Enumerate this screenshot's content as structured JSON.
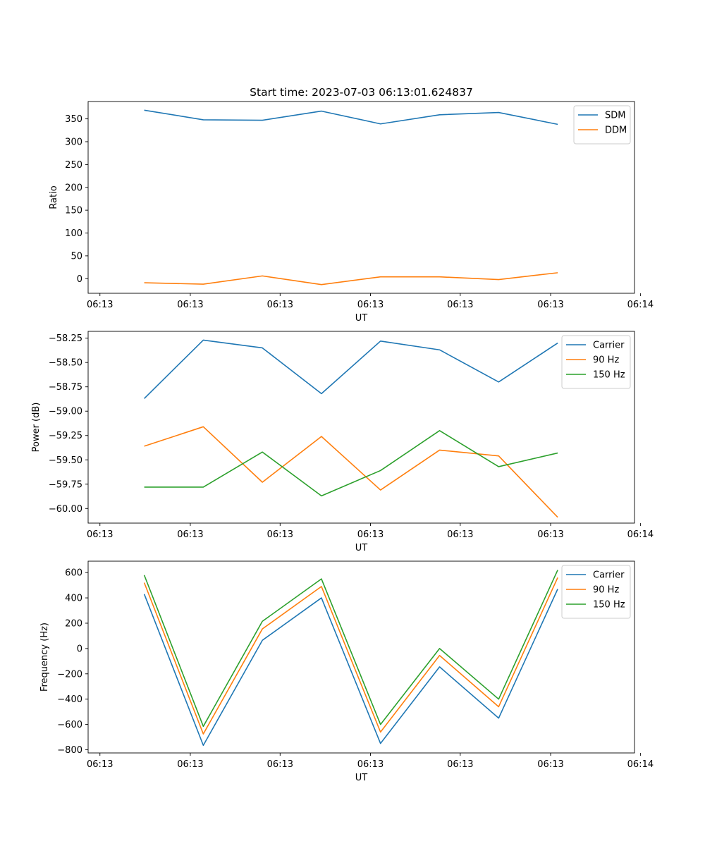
{
  "figure_title": "Start time: 2023-07-03 06:13:01.624837",
  "chart_data": [
    {
      "type": "line",
      "title": "Start time: 2023-07-03 06:13:01.624837",
      "xlabel": "UT",
      "ylabel": "Ratio",
      "xlim": [
        -0.2,
        9.05
      ],
      "ylim": [
        -32,
        388
      ],
      "x": [
        0.75,
        1.75,
        2.75,
        3.75,
        4.75,
        5.75,
        6.75,
        7.75
      ],
      "xticks": [
        0,
        1.53,
        3.05,
        4.58,
        6.1,
        7.63,
        9.15
      ],
      "xtick_labels": [
        "06:13",
        "06:13",
        "06:13",
        "06:13",
        "06:13",
        "06:13",
        "06:14"
      ],
      "yticks": [
        0,
        50,
        100,
        150,
        200,
        250,
        300,
        350
      ],
      "ytick_labels": [
        "0",
        "50",
        "100",
        "150",
        "200",
        "250",
        "300",
        "350"
      ],
      "legend": "top-right",
      "series": [
        {
          "name": "SDM",
          "color": "#1f77b4",
          "values": [
            369,
            348,
            347,
            367,
            339,
            359,
            364,
            338
          ]
        },
        {
          "name": "DDM",
          "color": "#ff7f0e",
          "values": [
            -9,
            -12,
            6,
            -13,
            4,
            4,
            -2,
            13
          ]
        }
      ]
    },
    {
      "type": "line",
      "title": "",
      "xlabel": "UT",
      "ylabel": "Power (dB)",
      "xlim": [
        -0.2,
        9.05
      ],
      "ylim": [
        -60.15,
        -58.18
      ],
      "x": [
        0.75,
        1.75,
        2.75,
        3.75,
        4.75,
        5.75,
        6.75,
        7.75
      ],
      "xticks": [
        0,
        1.53,
        3.05,
        4.58,
        6.1,
        7.63,
        9.15
      ],
      "xtick_labels": [
        "06:13",
        "06:13",
        "06:13",
        "06:13",
        "06:13",
        "06:13",
        "06:14"
      ],
      "yticks": [
        -60.0,
        -59.75,
        -59.5,
        -59.25,
        -59.0,
        -58.75,
        -58.5,
        -58.25
      ],
      "ytick_labels": [
        "−60.00",
        "−59.75",
        "−59.50",
        "−59.25",
        "−59.00",
        "−58.75",
        "−58.50",
        "−58.25"
      ],
      "legend": "top-right",
      "series": [
        {
          "name": "Carrier",
          "color": "#1f77b4",
          "values": [
            -58.87,
            -58.27,
            -58.35,
            -58.82,
            -58.28,
            -58.37,
            -58.7,
            -58.3
          ]
        },
        {
          "name": "90 Hz",
          "color": "#ff7f0e",
          "values": [
            -59.36,
            -59.16,
            -59.73,
            -59.26,
            -59.81,
            -59.4,
            -59.46,
            -60.09
          ]
        },
        {
          "name": "150 Hz",
          "color": "#2ca02c",
          "values": [
            -59.78,
            -59.78,
            -59.42,
            -59.87,
            -59.61,
            -59.2,
            -59.57,
            -59.43
          ]
        }
      ]
    },
    {
      "type": "line",
      "title": "",
      "xlabel": "UT",
      "ylabel": "Frequency (Hz)",
      "xlim": [
        -0.2,
        9.05
      ],
      "ylim": [
        -825,
        690
      ],
      "x": [
        0.75,
        1.75,
        2.75,
        3.75,
        4.75,
        5.75,
        6.75,
        7.75
      ],
      "xticks": [
        0,
        1.53,
        3.05,
        4.58,
        6.1,
        7.63,
        9.15
      ],
      "xtick_labels": [
        "06:13",
        "06:13",
        "06:13",
        "06:13",
        "06:13",
        "06:13",
        "06:14"
      ],
      "yticks": [
        -800,
        -600,
        -400,
        -200,
        0,
        200,
        400,
        600
      ],
      "ytick_labels": [
        "−800",
        "−600",
        "−400",
        "−200",
        "0",
        "200",
        "400",
        "600"
      ],
      "legend": "top-right",
      "series": [
        {
          "name": "Carrier",
          "color": "#1f77b4",
          "values": [
            430,
            -765,
            65,
            400,
            -750,
            -145,
            -550,
            470
          ]
        },
        {
          "name": "90 Hz",
          "color": "#ff7f0e",
          "values": [
            520,
            -675,
            155,
            490,
            -660,
            -55,
            -460,
            560
          ]
        },
        {
          "name": "150 Hz",
          "color": "#2ca02c",
          "values": [
            580,
            -615,
            215,
            550,
            -600,
            0,
            -400,
            620
          ]
        }
      ]
    }
  ]
}
